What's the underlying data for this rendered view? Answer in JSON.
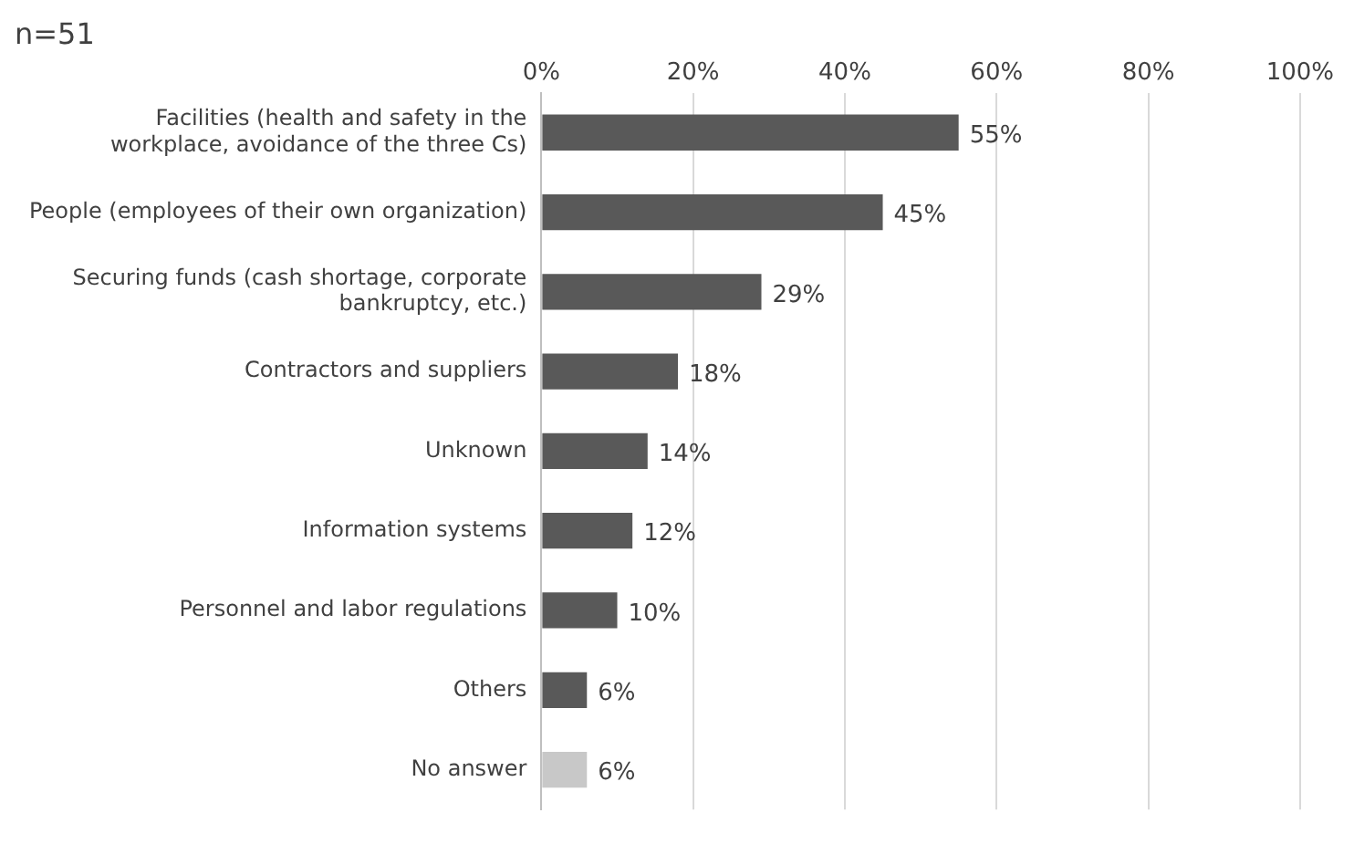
{
  "chart_data": {
    "type": "bar",
    "orientation": "horizontal",
    "title": "n=51",
    "categories": [
      "Facilities (health and safety in the workplace, avoidance of the three Cs)",
      "People (employees of their own organization)",
      "Securing funds (cash shortage, corporate bankruptcy, etc.)",
      "Contractors and suppliers",
      "Unknown",
      "Information systems",
      "Personnel and labor regulations",
      "Others",
      "No answer"
    ],
    "values": [
      55,
      45,
      29,
      18,
      14,
      12,
      10,
      6,
      6
    ],
    "colors": [
      "#595959",
      "#595959",
      "#595959",
      "#595959",
      "#595959",
      "#595959",
      "#595959",
      "#595959",
      "#c8c8c8"
    ],
    "value_labels": [
      "55%",
      "45%",
      "29%",
      "18%",
      "14%",
      "12%",
      "10%",
      "6%",
      "6%"
    ],
    "xlim": [
      0,
      100
    ],
    "xticks": [
      {
        "value": 0,
        "label": "0%"
      },
      {
        "value": 20,
        "label": "20%"
      },
      {
        "value": 40,
        "label": "40%"
      },
      {
        "value": 60,
        "label": "60%"
      },
      {
        "value": 80,
        "label": "80%"
      },
      {
        "value": 100,
        "label": "100%"
      }
    ],
    "grid": "x"
  }
}
